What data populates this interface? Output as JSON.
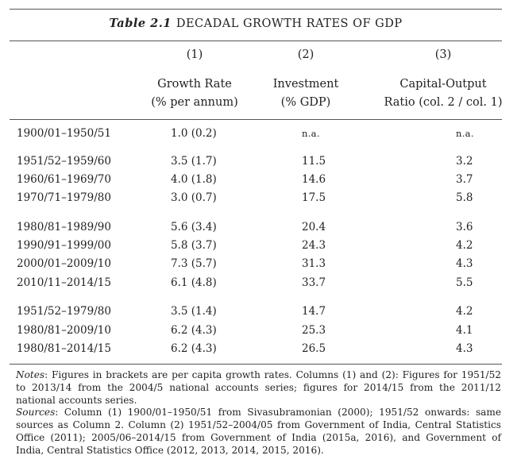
{
  "caption": {
    "number": "Table 2.1",
    "title": "DECADAL GROWTH RATES OF GDP"
  },
  "columns": [
    {
      "num": "(1)",
      "line1": "Growth Rate",
      "line2": "(% per annum)"
    },
    {
      "num": "(2)",
      "line1": "Investment",
      "line2": "(% GDP)"
    },
    {
      "num": "(3)",
      "line1": "Capital-Output",
      "line2": "Ratio (col. 2 / col. 1)"
    }
  ],
  "rows": [
    {
      "period": "1900/01–1950/51",
      "growth": "1.0 (0.2)",
      "investment": "n.a.",
      "ratio": "n.a."
    },
    {
      "period": "1951/52–1959/60",
      "growth": "3.5 (1.7)",
      "investment": "11.5",
      "ratio": "3.2"
    },
    {
      "period": "1960/61–1969/70",
      "growth": "4.0 (1.8)",
      "investment": "14.6",
      "ratio": "3.7"
    },
    {
      "period": "1970/71–1979/80",
      "growth": "3.0 (0.7)",
      "investment": "17.5",
      "ratio": "5.8"
    },
    {
      "period": "1980/81–1989/90",
      "growth": "5.6 (3.4)",
      "investment": "20.4",
      "ratio": "3.6"
    },
    {
      "period": "1990/91–1999/00",
      "growth": "5.8 (3.7)",
      "investment": "24.3",
      "ratio": "4.2"
    },
    {
      "period": "2000/01–2009/10",
      "growth": "7.3 (5.7)",
      "investment": "31.3",
      "ratio": "4.3"
    },
    {
      "period": "2010/11–2014/15",
      "growth": "6.1 (4.8)",
      "investment": "33.7",
      "ratio": "5.5"
    },
    {
      "period": "1951/52–1979/80",
      "growth": "3.5 (1.4)",
      "investment": "14.7",
      "ratio": "4.2"
    },
    {
      "period": "1980/81–2009/10",
      "growth": "6.2 (4.3)",
      "investment": "25.3",
      "ratio": "4.1"
    },
    {
      "period": "1980/81–2014/15",
      "growth": "6.2 (4.3)",
      "investment": "26.5",
      "ratio": "4.3"
    }
  ],
  "notes": {
    "label": "Notes",
    "text": ": Figures in brackets are per capita growth rates. Columns (1) and (2): Figures for 1951/52 to 2013/14 from the 2004/5 national accounts series; figures for 2014/15 from the 2011/12 national accounts series."
  },
  "sources": {
    "label": "Sources",
    "text": ": Column (1) 1900/01–1950/51 from Sivasubramonian (2000); 1951/52 onwards: same sources as Column 2. Column (2) 1951/52–2004/05 from Government of India, Central Statistics Office (2011); 2005/06–2014/15 from Government of India (2015a, 2016), and Government of India, Central Statistics Office (2012, 2013, 2014, 2015, 2016)."
  }
}
